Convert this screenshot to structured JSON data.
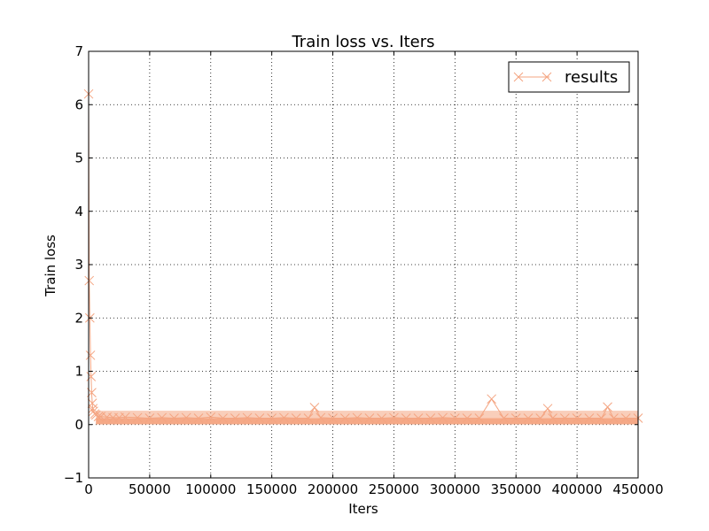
{
  "chart_data": {
    "type": "line",
    "title": "Train loss  vs. Iters",
    "xlabel": "Iters",
    "ylabel": "Train loss",
    "xlim": [
      0,
      450000
    ],
    "ylim": [
      -1,
      7
    ],
    "xticks": [
      0,
      50000,
      100000,
      150000,
      200000,
      250000,
      300000,
      350000,
      400000,
      450000
    ],
    "yticks": [
      -1,
      0,
      1,
      2,
      3,
      4,
      5,
      6,
      7
    ],
    "ytick_labels": [
      "−1",
      "0",
      "1",
      "2",
      "3",
      "4",
      "5",
      "6",
      "7"
    ],
    "grid": true,
    "legend_position": "top-right",
    "marker": "x",
    "series": [
      {
        "name": "results",
        "color": "#f4a582",
        "x": [
          0,
          500,
          1000,
          1500,
          2000,
          2500,
          3000,
          3500,
          4000,
          5000,
          6000,
          8000,
          10000,
          15000,
          20000,
          25000,
          30000,
          40000,
          50000,
          60000,
          70000,
          80000,
          90000,
          100000,
          110000,
          120000,
          130000,
          140000,
          150000,
          160000,
          170000,
          180000,
          185000,
          190000,
          200000,
          210000,
          220000,
          230000,
          240000,
          250000,
          260000,
          270000,
          280000,
          290000,
          300000,
          310000,
          320000,
          330000,
          340000,
          350000,
          360000,
          370000,
          376000,
          380000,
          390000,
          400000,
          410000,
          420000,
          425000,
          430000,
          440000,
          450000
        ],
        "values": [
          6.2,
          2.7,
          2.0,
          1.3,
          0.9,
          0.6,
          0.4,
          0.3,
          0.25,
          0.2,
          0.18,
          0.15,
          0.15,
          0.14,
          0.13,
          0.13,
          0.14,
          0.13,
          0.12,
          0.13,
          0.12,
          0.13,
          0.12,
          0.14,
          0.12,
          0.12,
          0.13,
          0.12,
          0.12,
          0.13,
          0.12,
          0.12,
          0.32,
          0.13,
          0.12,
          0.12,
          0.13,
          0.12,
          0.12,
          0.13,
          0.12,
          0.12,
          0.12,
          0.13,
          0.12,
          0.12,
          0.12,
          0.48,
          0.12,
          0.12,
          0.12,
          0.12,
          0.3,
          0.12,
          0.12,
          0.12,
          0.12,
          0.12,
          0.33,
          0.12,
          0.12,
          0.12
        ]
      }
    ]
  }
}
